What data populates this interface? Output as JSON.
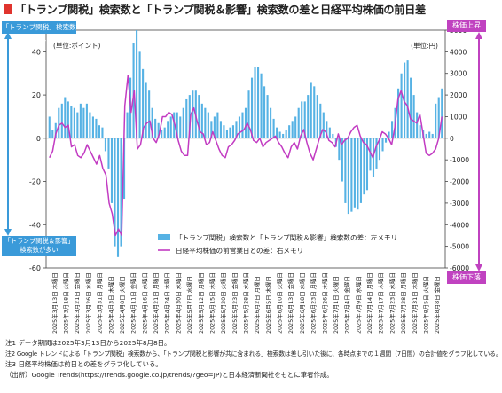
{
  "title": "「トランプ関税」検索数と「トランプ関税＆影響」検索数の差と日経平均株価の前日差",
  "tags": {
    "left_top": "「トランプ関税」検索数が多い",
    "left_bottom_1": "「トランプ関税＆影響」",
    "left_bottom_2": "検索数が多い",
    "right_top": "株価上昇",
    "right_bottom": "株価下落"
  },
  "colors": {
    "bar": "#56b2e4",
    "line": "#c23bc2",
    "left_arrow": "#3a9ad9",
    "right_arrow": "#c042c0",
    "title_mark": "#e0342e"
  },
  "chart_data": {
    "type": "bar",
    "left_unit": "(単位:ポイント)",
    "right_unit": "(単位:円)",
    "left_ticks": [
      "40",
      "20",
      "0",
      "-20",
      "-40",
      "-60"
    ],
    "left_ylim": [
      -60,
      50
    ],
    "right_ticks": [
      "5000",
      "4000",
      "3000",
      "2000",
      "1000",
      "0",
      "-1000",
      "-2000",
      "-3000",
      "-4000",
      "-5000",
      "-6000"
    ],
    "right_ylim": [
      -6000,
      5000
    ],
    "date_labels": [
      "2025年3月13日 木曜日",
      "2025年3月18日 火曜日",
      "2025年3月21日 金曜日",
      "2025年3月26日 水曜日",
      "2025年3月31日 月曜日",
      "2025年4月3日 木曜日",
      "2025年4月8日 火曜日",
      "2025年4月11日 金曜日",
      "2025年4月16日 水曜日",
      "2025年4月21日 月曜日",
      "2025年4月24日 木曜日",
      "2025年4月30日 水曜日",
      "2025年5月7日 水曜日",
      "2025年5月12日 月曜日",
      "2025年5月15日 木曜日",
      "2025年5月20日 火曜日",
      "2025年5月23日 金曜日",
      "2025年5月28日 水曜日",
      "2025年6月2日 月曜日",
      "2025年6月5日 木曜日",
      "2025年6月10日 火曜日",
      "2025年6月13日 金曜日",
      "2025年6月18日 水曜日",
      "2025年6月23日 月曜日",
      "2025年6月26日 木曜日",
      "2025年7月1日 火曜日",
      "2025年7月4日 金曜日",
      "2025年7月9日 水曜日",
      "2025年7月14日 月曜日",
      "2025年7月17日 木曜日",
      "2025年7月23日 水曜日",
      "2025年7月28日 月曜日",
      "2025年7月31日 木曜日",
      "2025年8月5日 火曜日",
      "2025年8月8日 金曜日"
    ],
    "series": [
      {
        "name": "「トランプ関税」検索数と「トランプ関税＆影響」検索数の差：左メモリ",
        "axis": "left",
        "type": "bar",
        "values": [
          10,
          4,
          7,
          14,
          16,
          19,
          17,
          15,
          14,
          12,
          16,
          14,
          16,
          12,
          10,
          9,
          6,
          5,
          -6,
          -14,
          -30,
          -50,
          -55,
          -50,
          -28,
          12,
          28,
          44,
          50,
          40,
          32,
          26,
          22,
          14,
          9,
          7,
          4,
          5,
          8,
          10,
          12,
          12,
          10,
          14,
          18,
          20,
          22,
          22,
          20,
          16,
          14,
          12,
          8,
          10,
          12,
          8,
          6,
          4,
          5,
          6,
          8,
          10,
          12,
          14,
          22,
          28,
          33,
          33,
          30,
          24,
          20,
          14,
          9,
          5,
          3,
          2,
          4,
          6,
          8,
          10,
          14,
          17,
          17,
          20,
          26,
          24,
          20,
          16,
          12,
          8,
          5,
          2,
          -4,
          -10,
          -20,
          -30,
          -35,
          -34,
          -32,
          -33,
          -30,
          -26,
          -24,
          -15,
          -18,
          -14,
          -10,
          -6,
          -2,
          3,
          8,
          14,
          23,
          30,
          35,
          36,
          28,
          20,
          12,
          6,
          4,
          2,
          3,
          2,
          16,
          19,
          23
        ]
      },
      {
        "name": "日経平均株価の前営業日との差：右メモリ",
        "axis": "right",
        "type": "line",
        "values": [
          -900,
          -600,
          200,
          600,
          700,
          500,
          600,
          -400,
          -300,
          -800,
          -900,
          -700,
          -300,
          -600,
          -900,
          -1200,
          -800,
          -1400,
          -1700,
          -3000,
          -3500,
          -4500,
          -4200,
          -4500,
          1500,
          2900,
          1200,
          2200,
          -500,
          -300,
          500,
          700,
          800,
          0,
          -200,
          200,
          1000,
          1000,
          1200,
          1100,
          600,
          -100,
          -600,
          -800,
          -800,
          1100,
          1400,
          800,
          300,
          200,
          -300,
          -200,
          300,
          -100,
          -500,
          -800,
          -900,
          -400,
          -300,
          -100,
          200,
          300,
          400,
          700,
          400,
          -100,
          -200,
          0,
          -400,
          -200,
          -100,
          0,
          100,
          -200,
          -400,
          -700,
          -900,
          -400,
          -200,
          -500,
          100,
          400,
          -200,
          -700,
          -1000,
          -500,
          0,
          400,
          300,
          -100,
          -200,
          -400,
          200,
          -300,
          -100,
          0,
          300,
          500,
          600,
          100,
          -200,
          -300,
          -600,
          -900,
          -400,
          -100,
          300,
          200,
          0,
          -300,
          500,
          1800,
          2200,
          1700,
          1500,
          900,
          800,
          700,
          1100,
          200,
          -700,
          -800,
          -700,
          -500,
          0,
          1000
        ]
      }
    ]
  },
  "notes": [
    "注1  データ期間は2025年3月13日から2025年8月8日。",
    "注2  Google トレンドによる「トランプ関税」検索数から、「トランプ関税と影響が共に含まれる」検索数は差し引いた後に、各時点までの１週間（7日間）の合計値をグラフ化している。",
    "注3  日経平均株価は前日との差をグラフ化している。",
    "（出所）Google Trends(https://trends.google.co.jp/trends/?geo=JP)と日本経済新聞社をもとに筆者作成。"
  ]
}
